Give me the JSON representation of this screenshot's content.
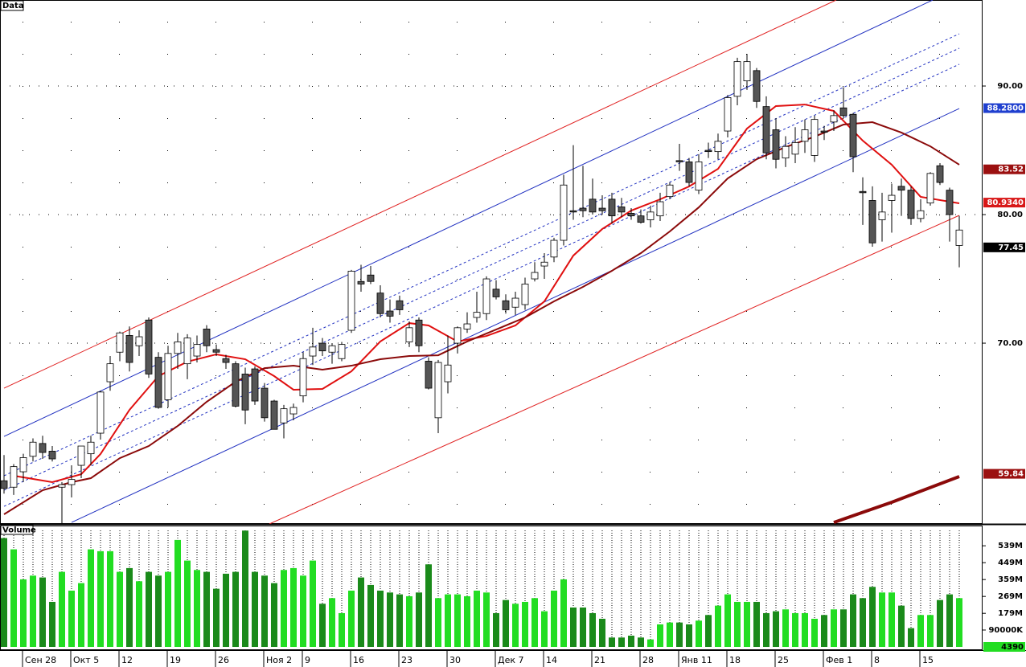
{
  "chart_data": {
    "type": "candlestick",
    "title": "Data",
    "volume_title": "Volume",
    "categories": [
      null,
      null,
      "Сен 28",
      null,
      null,
      null,
      null,
      "Окт 5",
      null,
      null,
      null,
      null,
      "12",
      null,
      null,
      null,
      null,
      "19",
      null,
      null,
      null,
      null,
      "26",
      null,
      null,
      null,
      null,
      "Ноя 2",
      null,
      null,
      null,
      "9",
      null,
      null,
      null,
      null,
      "16",
      null,
      null,
      null,
      null,
      "23",
      null,
      null,
      null,
      null,
      "30",
      null,
      null,
      null,
      null,
      "Дек 7",
      null,
      null,
      null,
      null,
      "14",
      null,
      null,
      null,
      null,
      "21",
      null,
      null,
      null,
      null,
      "28",
      null,
      null,
      null,
      "Янв 11",
      null,
      null,
      null,
      null,
      "18",
      null,
      null,
      null,
      null,
      "25",
      null,
      null,
      null,
      null,
      "Фев 1",
      null,
      null,
      null,
      null,
      "8",
      null,
      null,
      null,
      null,
      "15",
      null,
      null,
      null,
      null
    ],
    "ohlc": [
      [
        59.3,
        61.3,
        58.3,
        58.7
      ],
      [
        58.8,
        60.6,
        58.2,
        60.4
      ],
      [
        60.0,
        61.4,
        59.2,
        61.1
      ],
      [
        61.2,
        62.6,
        60.8,
        62.3
      ],
      [
        62.2,
        62.8,
        61.0,
        61.5
      ],
      [
        61.6,
        62.0,
        60.8,
        61.0
      ],
      [
        58.8,
        59.2,
        55.9,
        59.0
      ],
      [
        59.0,
        60.5,
        58.0,
        59.4
      ],
      [
        60.5,
        62.0,
        59.5,
        62.0
      ],
      [
        61.4,
        62.8,
        60.5,
        62.3
      ],
      [
        63.0,
        66.3,
        62.5,
        66.2
      ],
      [
        67.0,
        69.0,
        66.3,
        68.4
      ],
      [
        69.3,
        70.9,
        68.6,
        70.8
      ],
      [
        70.6,
        71.3,
        67.8,
        68.5
      ],
      [
        69.8,
        71.0,
        69.0,
        70.5
      ],
      [
        71.8,
        72.0,
        67.3,
        67.6
      ],
      [
        68.9,
        69.3,
        64.9,
        65.0
      ],
      [
        65.6,
        69.8,
        65.0,
        69.2
      ],
      [
        69.2,
        70.8,
        68.0,
        70.1
      ],
      [
        68.4,
        70.7,
        67.2,
        70.4
      ],
      [
        69.0,
        70.6,
        68.5,
        69.9
      ],
      [
        71.1,
        71.4,
        69.3,
        69.8
      ],
      [
        69.5,
        69.9,
        69.0,
        69.3
      ],
      [
        68.8,
        69.1,
        68.0,
        68.5
      ],
      [
        68.4,
        68.6,
        65.0,
        65.1
      ],
      [
        67.6,
        68.1,
        63.7,
        64.8
      ],
      [
        68.0,
        68.2,
        65.2,
        65.5
      ],
      [
        66.5,
        66.9,
        63.9,
        64.2
      ],
      [
        65.5,
        65.6,
        63.3,
        63.3
      ],
      [
        63.8,
        65.2,
        62.6,
        64.9
      ],
      [
        64.5,
        65.3,
        64.0,
        65.0
      ],
      [
        65.9,
        69.3,
        65.4,
        68.8
      ],
      [
        69.0,
        71.2,
        68.3,
        69.7
      ],
      [
        70.0,
        70.4,
        69.0,
        69.4
      ],
      [
        69.3,
        70.0,
        68.4,
        69.8
      ],
      [
        68.8,
        70.1,
        68.6,
        69.9
      ],
      [
        71.0,
        75.7,
        70.8,
        75.6
      ],
      [
        74.8,
        76.1,
        74.0,
        74.6
      ],
      [
        75.3,
        76.0,
        74.6,
        74.8
      ],
      [
        73.9,
        74.5,
        72.0,
        72.3
      ],
      [
        72.5,
        73.4,
        71.6,
        72.1
      ],
      [
        73.3,
        73.7,
        72.2,
        72.6
      ],
      [
        70.1,
        71.7,
        69.7,
        71.2
      ],
      [
        71.8,
        72.0,
        69.3,
        69.8
      ],
      [
        68.6,
        68.9,
        66.4,
        66.5
      ],
      [
        64.2,
        68.7,
        63.0,
        68.5
      ],
      [
        67.0,
        70.6,
        66.1,
        68.3
      ],
      [
        70.0,
        71.3,
        69.2,
        71.2
      ],
      [
        71.1,
        72.4,
        70.8,
        71.5
      ],
      [
        72.0,
        74.0,
        71.6,
        72.4
      ],
      [
        72.3,
        75.2,
        71.8,
        75.0
      ],
      [
        74.2,
        74.9,
        73.4,
        73.6
      ],
      [
        73.3,
        73.8,
        72.3,
        72.6
      ],
      [
        72.8,
        74.0,
        72.2,
        73.5
      ],
      [
        73.0,
        75.1,
        72.6,
        74.6
      ],
      [
        75.0,
        76.3,
        74.8,
        75.5
      ],
      [
        76.0,
        77.0,
        75.0,
        76.3
      ],
      [
        76.7,
        78.2,
        76.3,
        78.0
      ],
      [
        78.0,
        83.1,
        77.6,
        82.3
      ],
      [
        80.3,
        85.4,
        79.6,
        80.2
      ],
      [
        80.5,
        83.8,
        79.8,
        80.3
      ],
      [
        81.2,
        82.8,
        80.0,
        80.2
      ],
      [
        80.5,
        81.5,
        80.0,
        80.3
      ],
      [
        81.2,
        81.7,
        79.3,
        79.9
      ],
      [
        80.6,
        81.3,
        79.8,
        80.2
      ],
      [
        80.1,
        80.5,
        79.6,
        79.9
      ],
      [
        79.9,
        80.4,
        79.3,
        79.4
      ],
      [
        79.6,
        80.7,
        79.0,
        80.2
      ],
      [
        79.9,
        81.7,
        79.5,
        81.0
      ],
      [
        81.4,
        82.5,
        81.2,
        82.3
      ],
      [
        84.2,
        85.5,
        83.4,
        84.1
      ],
      [
        84.1,
        84.4,
        82.2,
        82.5
      ],
      [
        81.9,
        84.7,
        81.6,
        84.1
      ],
      [
        85.0,
        85.6,
        84.4,
        84.9
      ],
      [
        84.9,
        86.3,
        84.3,
        85.7
      ],
      [
        86.5,
        89.3,
        86.0,
        89.1
      ],
      [
        89.2,
        92.2,
        88.5,
        91.9
      ],
      [
        90.4,
        92.5,
        89.7,
        91.9
      ],
      [
        91.2,
        91.4,
        88.3,
        88.8
      ],
      [
        88.4,
        89.2,
        84.3,
        84.8
      ],
      [
        86.6,
        87.5,
        83.6,
        84.3
      ],
      [
        84.4,
        86.1,
        83.7,
        85.3
      ],
      [
        84.7,
        86.8,
        84.0,
        85.6
      ],
      [
        85.7,
        87.4,
        84.8,
        86.6
      ],
      [
        84.6,
        87.7,
        84.1,
        87.4
      ],
      [
        86.5,
        86.9,
        85.8,
        86.4
      ],
      [
        87.2,
        88.1,
        86.5,
        87.7
      ],
      [
        88.3,
        89.9,
        87.5,
        87.7
      ],
      [
        87.8,
        87.9,
        83.3,
        84.5
      ],
      [
        81.8,
        82.9,
        79.2,
        81.7
      ],
      [
        81.1,
        82.2,
        77.5,
        77.8
      ],
      [
        79.6,
        81.7,
        77.9,
        80.2
      ],
      [
        81.1,
        82.4,
        78.6,
        81.5
      ],
      [
        82.2,
        82.8,
        79.9,
        81.9
      ],
      [
        81.9,
        82.2,
        79.2,
        79.7
      ],
      [
        79.7,
        81.2,
        79.4,
        80.3
      ],
      [
        80.9,
        83.3,
        80.7,
        83.2
      ],
      [
        83.8,
        84.0,
        82.3,
        82.5
      ],
      [
        81.9,
        82.1,
        77.9,
        80.0
      ],
      [
        77.6,
        79.9,
        75.9,
        78.8
      ]
    ],
    "up_color": "#ffffff",
    "down_color": "#555555",
    "volume": [
      580,
      520,
      360,
      380,
      370,
      240,
      400,
      300,
      340,
      520,
      510,
      510,
      400,
      420,
      350,
      400,
      380,
      400,
      570,
      460,
      410,
      400,
      310,
      390,
      400,
      620,
      400,
      380,
      340,
      410,
      420,
      380,
      460,
      230,
      260,
      180,
      300,
      370,
      330,
      300,
      290,
      280,
      270,
      290,
      440,
      260,
      280,
      280,
      270,
      300,
      290,
      180,
      250,
      230,
      240,
      260,
      190,
      300,
      360,
      210,
      210,
      180,
      150,
      50,
      50,
      60,
      50,
      40,
      120,
      130,
      130,
      120,
      140,
      170,
      220,
      280,
      240,
      240,
      240,
      180,
      190,
      200,
      180,
      180,
      150,
      170,
      200,
      200,
      280,
      260,
      320,
      290,
      290,
      220,
      100,
      170,
      170,
      250,
      280,
      260
    ],
    "volume_up_color": "#22dd22",
    "volume_down_color": "#1a8a1a",
    "ylim": [
      55.94,
      96.69
    ],
    "yticks": [
      {
        "value": 90,
        "label": "90.00"
      },
      {
        "value": 80,
        "label": "80.00"
      },
      {
        "value": 70,
        "label": "70.00"
      }
    ],
    "vlim": [
      0,
      621
    ],
    "vticks": [
      {
        "value": 539,
        "label": "539M"
      },
      {
        "value": 449,
        "label": "449M"
      },
      {
        "value": 359,
        "label": "359M"
      },
      {
        "value": 269,
        "label": "269M"
      },
      {
        "value": 179,
        "label": "179M"
      },
      {
        "value": 90,
        "label": "90000K"
      }
    ],
    "price_tags": [
      {
        "value": 88.28,
        "label": "88.2800",
        "color": "#1f3fcf"
      },
      {
        "value": 83.52,
        "label": "83.52",
        "color": "#9b1010"
      },
      {
        "value": 80.934,
        "label": "80.9340",
        "color": "#d81818"
      },
      {
        "value": 77.45,
        "label": "77.45",
        "color": "#000000"
      },
      {
        "value": 59.84,
        "label": "59.84",
        "color": "#9b1010"
      }
    ],
    "volume_tag": {
      "label": "4390",
      "color": "#22dd22"
    },
    "lines": [
      {
        "color": "#e02020",
        "style": "solid",
        "width": 1,
        "x": [
          0,
          86.25
        ],
        "values": [
          66.5,
          96.69
        ]
      },
      {
        "color": "#2030c0",
        "style": "solid",
        "width": 1,
        "x": [
          0,
          96.25
        ],
        "values": [
          62.75,
          96.69
        ]
      },
      {
        "color": "#2030c0",
        "style": "dashed",
        "width": 1,
        "x": [
          0,
          99
        ],
        "values": [
          59.69,
          94.06
        ]
      },
      {
        "color": "#2030c0",
        "style": "dashed",
        "width": 1,
        "x": [
          0,
          99
        ],
        "values": [
          58.56,
          92.94
        ]
      },
      {
        "color": "#2030c0",
        "style": "dashed",
        "width": 1,
        "x": [
          0,
          99
        ],
        "values": [
          57.31,
          91.69
        ]
      },
      {
        "color": "#2030c0",
        "style": "solid",
        "width": 1,
        "x": [
          7,
          99
        ],
        "values": [
          56.06,
          88.25
        ]
      },
      {
        "color": "#e02020",
        "style": "solid",
        "width": 1,
        "x": [
          27.5,
          99
        ],
        "values": [
          55.94,
          79.94
        ]
      },
      {
        "color": "#e01010",
        "style": "solid",
        "width": 2,
        "x": [
          1,
          5,
          8,
          10,
          13,
          16,
          19,
          22,
          25,
          28,
          30,
          33,
          36,
          39,
          42,
          44,
          47,
          50,
          53,
          56,
          59,
          62,
          65,
          68,
          71,
          74,
          77,
          80,
          83,
          86,
          89,
          92,
          95,
          99
        ],
        "values": [
          59.69,
          59.19,
          59.81,
          61.38,
          64.81,
          67.44,
          68.56,
          69.13,
          68.75,
          67.44,
          66.38,
          66.44,
          67.81,
          70.13,
          71.56,
          71.38,
          70.13,
          70.56,
          71.38,
          73.25,
          76.81,
          78.88,
          80.31,
          81.19,
          82.19,
          83.56,
          86.69,
          88.44,
          88.56,
          88.06,
          85.75,
          83.88,
          81.38,
          80.88
        ]
      },
      {
        "color": "#8b0a0a",
        "style": "solid",
        "width": 2,
        "x": [
          0,
          4,
          7,
          9,
          12,
          15,
          18,
          21,
          24,
          27,
          30,
          33,
          36,
          39,
          42,
          45,
          48,
          51,
          54,
          57,
          60,
          63,
          66,
          69,
          72,
          75,
          78,
          81,
          84,
          87,
          90,
          93,
          96,
          99
        ],
        "values": [
          56.69,
          58.56,
          59.19,
          59.5,
          61.06,
          62.0,
          63.56,
          65.44,
          67.0,
          68.06,
          68.25,
          67.94,
          68.25,
          68.75,
          69.0,
          69.06,
          70.13,
          71.06,
          72.0,
          73.25,
          74.38,
          75.63,
          77.0,
          78.69,
          80.56,
          82.81,
          84.31,
          85.25,
          86.06,
          87.0,
          87.19,
          86.38,
          85.31,
          83.88
        ]
      },
      {
        "color": "#8b0a0a",
        "style": "solid",
        "width": 4,
        "x": [
          86,
          92,
          99
        ],
        "values": [
          56.06,
          57.63,
          59.63
        ]
      }
    ]
  }
}
